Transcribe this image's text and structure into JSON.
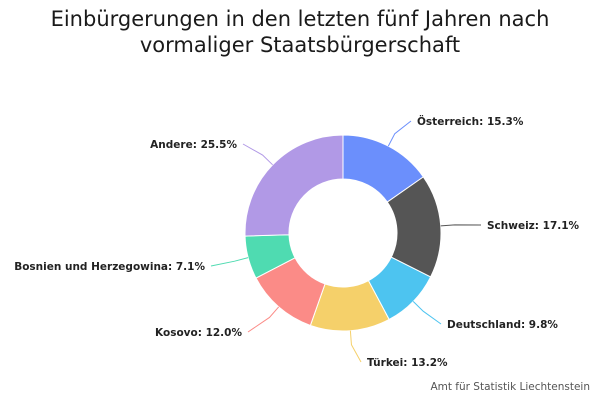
{
  "title_lines": [
    "Einbürgerungen in den letzten fünf Jahren nach",
    "vormaliger Staatsbürgerschaft"
  ],
  "source": "Amt für Statistik Liechtenstein",
  "chart_data": {
    "type": "pie",
    "variant": "donut",
    "title": "Einbürgerungen in den letzten fünf Jahren nach vormaliger Staatsbürgerschaft",
    "unit": "%",
    "legend": "none",
    "slices": [
      {
        "name": "Österreich",
        "value": 15.3,
        "label": "Österreich: 15.3%",
        "color": "#6b8ffc"
      },
      {
        "name": "Schweiz",
        "value": 17.1,
        "label": "Schweiz: 17.1%",
        "color": "#555555"
      },
      {
        "name": "Deutschland",
        "value": 9.8,
        "label": "Deutschland: 9.8%",
        "color": "#4dc4f0"
      },
      {
        "name": "Türkei",
        "value": 13.2,
        "label": "Türkei: 13.2%",
        "color": "#f5d06a"
      },
      {
        "name": "Kosovo",
        "value": 12.0,
        "label": "Kosovo: 12.0%",
        "color": "#fb8b87"
      },
      {
        "name": "Bosnien und Herzegowina",
        "value": 7.1,
        "label": "Bosnien und Herzegowina: 7.1%",
        "color": "#4fdbb1"
      },
      {
        "name": "Andere",
        "value": 25.5,
        "label": "Andere: 25.5%",
        "color": "#b199e6"
      }
    ]
  }
}
